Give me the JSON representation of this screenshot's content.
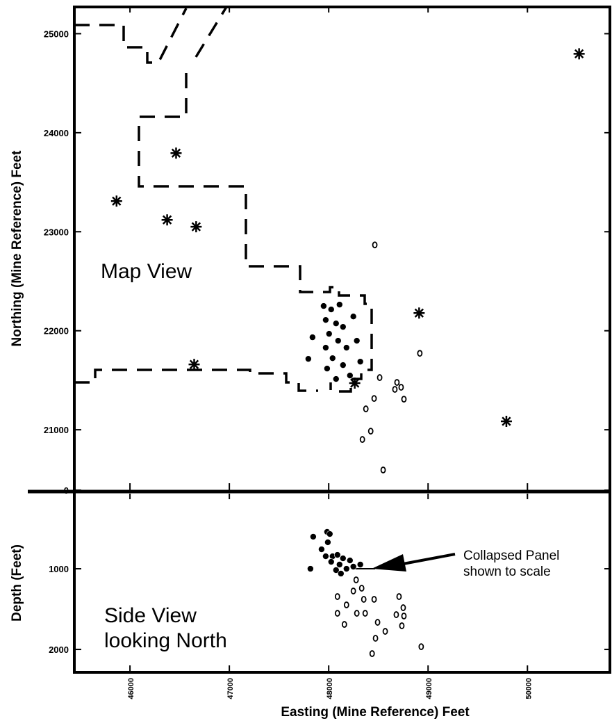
{
  "chart_data": [
    {
      "type": "scatter",
      "panel": "map",
      "ylabel": "Northing (Mine Reference) Feet",
      "annotations": [
        "Map View"
      ],
      "xlim": [
        45440,
        50830
      ],
      "ylim": [
        20390,
        25270
      ],
      "yticks": [
        {
          "value": 20390,
          "label": "0"
        },
        21000,
        22000,
        23000,
        24000,
        25000
      ],
      "series": [
        {
          "marker": "star",
          "color": "#000000",
          "x": [
            50520,
            46464,
            45865,
            46374,
            46666,
            46646,
            48910,
            49788,
            48262
          ],
          "y": [
            24797,
            23794,
            23309,
            23120,
            23050,
            21660,
            22179,
            21085,
            21471
          ]
        },
        {
          "marker": "open-circle",
          "color": "#000000",
          "x": [
            48464,
            48917,
            48513,
            48687,
            48666,
            48729,
            48757,
            48457,
            48374,
            48423,
            48339,
            48548
          ],
          "y": [
            22867,
            21772,
            21527,
            21478,
            21408,
            21429,
            21309,
            21316,
            21211,
            20986,
            20902,
            20594
          ]
        },
        {
          "marker": "filled-circle",
          "color": "#000000",
          "x": [
            47949,
            48025,
            48109,
            47970,
            48074,
            48144,
            48004,
            47837,
            48095,
            47970,
            48179,
            48039,
            47795,
            48144,
            47984,
            48074,
            48248,
            48283,
            48318,
            48214
          ],
          "y": [
            22250,
            22215,
            22264,
            22109,
            22074,
            22039,
            21969,
            21934,
            21899,
            21829,
            21829,
            21723,
            21716,
            21653,
            21618,
            21513,
            22144,
            21899,
            21688,
            21548
          ]
        }
      ]
    },
    {
      "type": "scatter",
      "panel": "side",
      "ylabel": "Depth (Feet)",
      "xlabel": "Easting (Mine Reference) Feet",
      "annotations": [
        [
          "Side View",
          "looking North"
        ],
        [
          "Collapsed Panel",
          "shown to scale"
        ]
      ],
      "xlim": [
        45440,
        50830
      ],
      "xticks": [
        46000,
        47000,
        48000,
        49000,
        50000
      ],
      "ylim": [
        2284,
        69
      ],
      "yticks": [
        1000,
        2000
      ],
      "series": [
        {
          "marker": "open-circle",
          "color": "#000000",
          "x": [
            48276,
            48088,
            48248,
            48332,
            48179,
            48353,
            48457,
            48708,
            48750,
            48088,
            48283,
            48367,
            48680,
            48757,
            48492,
            48158,
            48569,
            48736,
            48471,
            48437,
            48931
          ],
          "y": [
            1138,
            1345,
            1276,
            1241,
            1448,
            1379,
            1379,
            1345,
            1483,
            1552,
            1552,
            1552,
            1569,
            1586,
            1664,
            1690,
            1776,
            1707,
            1862,
            2052,
            1966
          ]
        },
        {
          "marker": "filled-circle",
          "color": "#000000",
          "x": [
            47984,
            48011,
            47844,
            47991,
            47928,
            47816,
            48039,
            48088,
            48144,
            48214,
            48109,
            48179,
            48074,
            48248,
            48318,
            48025,
            48123,
            47970
          ],
          "y": [
            543,
            569,
            603,
            672,
            759,
            1000,
            845,
            828,
            871,
            897,
            948,
            1000,
            1017,
            974,
            948,
            914,
            1060,
            845
          ]
        }
      ]
    }
  ]
}
